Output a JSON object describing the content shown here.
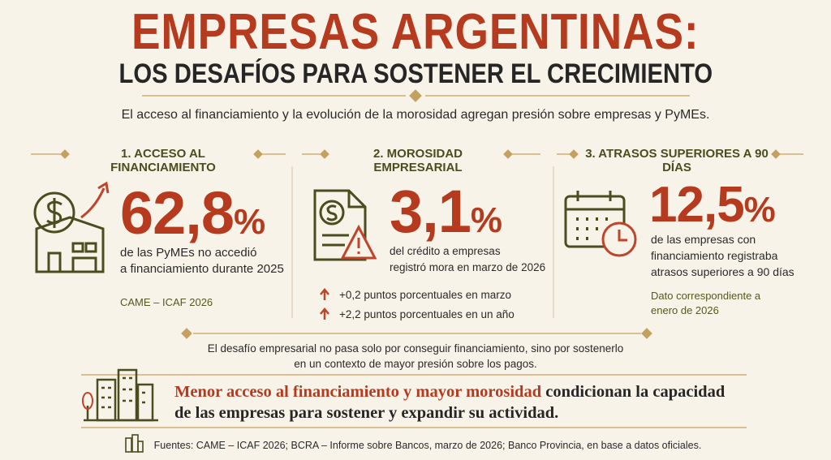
{
  "header": {
    "title": "EMPRESAS ARGENTINAS:",
    "subtitle": "LOS DESAFÍOS PARA SOSTENER EL CRECIMIENTO"
  },
  "intro": "El acceso al financiamiento y la evolución de la morosidad agregan presión sobre empresas y PyMEs.",
  "sections": [
    {
      "heading": "1. ACCESO AL FINANCIAMIENTO",
      "figure": "62,8",
      "unit": "%",
      "description": [
        "de las PyMEs no accedió",
        "a financiamiento durante 2025"
      ],
      "note": [
        "CAME – ICAF 2026"
      ]
    },
    {
      "heading": "2. MOROSIDAD EMPRESARIAL",
      "figure": "3,1",
      "unit": "%",
      "description": [
        "del crédito a empresas",
        "registró mora en marzo de 2026"
      ],
      "changes": [
        "+0,2 puntos porcentuales en marzo",
        "+2,2 puntos porcentuales en un año"
      ]
    },
    {
      "heading": "3. ATRASOS SUPERIORES A 90 DÍAS",
      "figure": "12,5",
      "unit": "%",
      "description": [
        "de las empresas con",
        "financiamiento registraba",
        "atrasos superiores a 90 días"
      ],
      "note": [
        "Dato correspondiente a",
        "enero de 2026"
      ]
    }
  ],
  "challenge": [
    "El desafío empresarial no pasa solo por conseguir financiamiento, sino por sostenerlo",
    "en un contexto de mayor presión sobre los pagos."
  ],
  "conclusion": {
    "highlight": "Menor acceso al financiamiento y mayor morosidad",
    "rest": "condicionan la capacidad",
    "line2": "de las empresas para sostener y expandir su actividad."
  },
  "sources": "Fuentes: CAME – ICAF 2026; BCRA – Informe sobre Bancos, marzo de 2026; Banco Provincia, en base a datos oficiales."
}
